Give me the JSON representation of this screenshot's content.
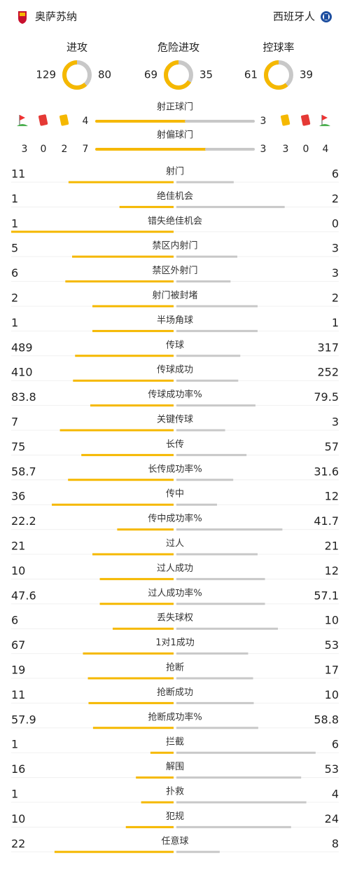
{
  "header": {
    "home": "奥萨苏纳",
    "away": "西班牙人"
  },
  "summary": [
    {
      "label": "进攻",
      "home": 129,
      "away": 80
    },
    {
      "label": "危险进攻",
      "home": 69,
      "away": 35
    },
    {
      "label": "控球率",
      "home": 61,
      "away": 39
    }
  ],
  "shots": [
    {
      "label": "射正球门",
      "home": 4,
      "away": 3
    },
    {
      "label": "射偏球门",
      "home": 7,
      "away": 3
    }
  ],
  "cards": {
    "home": {
      "corners": 3,
      "red": 0,
      "yellow": 2
    },
    "away": {
      "yellow": 3,
      "red": 0,
      "corners": 4
    }
  },
  "stats": [
    {
      "label": "射门",
      "home": 11,
      "away": 6
    },
    {
      "label": "绝佳机会",
      "home": 1,
      "away": 2
    },
    {
      "label": "错失绝佳机会",
      "home": 1,
      "away": 0
    },
    {
      "label": "禁区内射门",
      "home": 5,
      "away": 3
    },
    {
      "label": "禁区外射门",
      "home": 6,
      "away": 3
    },
    {
      "label": "射门被封堵",
      "home": 2,
      "away": 2
    },
    {
      "label": "半场角球",
      "home": 1,
      "away": 1
    },
    {
      "label": "传球",
      "home": 489,
      "away": 317
    },
    {
      "label": "传球成功",
      "home": 410,
      "away": 252
    },
    {
      "label": "传球成功率%",
      "home": 83.8,
      "away": 79.5
    },
    {
      "label": "关键传球",
      "home": 7,
      "away": 3
    },
    {
      "label": "长传",
      "home": 75,
      "away": 57
    },
    {
      "label": "长传成功率%",
      "home": 58.7,
      "away": 31.6
    },
    {
      "label": "传中",
      "home": 36,
      "away": 12
    },
    {
      "label": "传中成功率%",
      "home": 22.2,
      "away": 41.7
    },
    {
      "label": "过人",
      "home": 21,
      "away": 21
    },
    {
      "label": "过人成功",
      "home": 10,
      "away": 12
    },
    {
      "label": "过人成功率%",
      "home": 47.6,
      "away": 57.1
    },
    {
      "label": "丢失球权",
      "home": 6,
      "away": 10
    },
    {
      "label": "1对1成功",
      "home": 67,
      "away": 53
    },
    {
      "label": "抢断",
      "home": 19,
      "away": 17
    },
    {
      "label": "抢断成功",
      "home": 11,
      "away": 10
    },
    {
      "label": "抢断成功率%",
      "home": 57.9,
      "away": 58.8
    },
    {
      "label": "拦截",
      "home": 1,
      "away": 6
    },
    {
      "label": "解围",
      "home": 16,
      "away": 53
    },
    {
      "label": "扑救",
      "home": 1,
      "away": 4
    },
    {
      "label": "犯规",
      "home": 10,
      "away": 24
    },
    {
      "label": "任意球",
      "home": 22,
      "away": 8
    }
  ]
}
